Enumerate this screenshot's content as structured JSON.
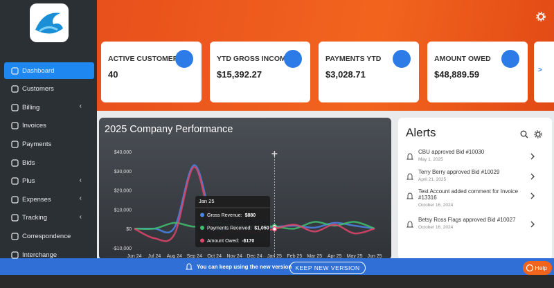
{
  "nav": [
    {
      "label": "Dashboard",
      "active": true,
      "submenu": false
    },
    {
      "label": "Customers",
      "active": false,
      "submenu": false
    },
    {
      "label": "Billing",
      "active": false,
      "submenu": true
    },
    {
      "label": "Invoices",
      "active": false,
      "submenu": false
    },
    {
      "label": "Payments",
      "active": false,
      "submenu": false
    },
    {
      "label": "Bids",
      "active": false,
      "submenu": false
    },
    {
      "label": "Plus",
      "active": false,
      "submenu": true
    },
    {
      "label": "Expenses",
      "active": false,
      "submenu": true
    },
    {
      "label": "Tracking",
      "active": false,
      "submenu": true
    },
    {
      "label": "Correspondence",
      "active": false,
      "submenu": false
    },
    {
      "label": "Interchange",
      "active": false,
      "submenu": false
    }
  ],
  "kpis": [
    {
      "label": "ACTIVE CUSTOMERS",
      "value": 40
    },
    {
      "label": "YTD GROSS INCOME",
      "value": "$15,392.27"
    },
    {
      "label": "PAYMENTS YTD",
      "value": "$3,028.71"
    },
    {
      "label": "AMOUNT OWED",
      "value": "$48,889.59"
    }
  ],
  "kpi_next": ">",
  "chart_data": {
    "type": "line",
    "title": "2025 Company Performance",
    "categories": [
      "Jun 24",
      "Jul 24",
      "Aug 24",
      "Sep 24",
      "Oct 24",
      "Nov 24",
      "Dec 24",
      "Jan 25",
      "Feb 25",
      "Mar 25",
      "Apr 25",
      "May 25",
      "Jun 25"
    ],
    "series": [
      {
        "name": "Gross Revenue",
        "color": "#4a86e8",
        "values": [
          0,
          0,
          500,
          33000,
          1000,
          1500,
          0,
          880,
          1500,
          500,
          3000,
          1500,
          0
        ]
      },
      {
        "name": "Payments Received",
        "color": "#3fbf6f",
        "values": [
          0,
          0,
          3000,
          1000,
          3000,
          1500,
          1500,
          1050,
          0,
          3500,
          1500,
          3500,
          0
        ]
      },
      {
        "name": "Amount Owed",
        "color": "#e0446a",
        "values": [
          0,
          -5000,
          -3000,
          32000,
          -3000,
          -1000,
          -2000,
          -170,
          2000,
          -1500,
          2000,
          -2500,
          0
        ]
      }
    ],
    "ylim": [
      -10000,
      40000
    ],
    "yticks": [
      {
        "value": -10000,
        "label": "-$10,000"
      },
      {
        "value": 0,
        "label": "$0"
      },
      {
        "value": 10000,
        "label": "$10,000"
      },
      {
        "value": 20000,
        "label": "$20,000"
      },
      {
        "value": 30000,
        "label": "$30,000"
      },
      {
        "value": 40000,
        "label": "$40,000"
      }
    ],
    "grid": false,
    "tooltip": {
      "index": 7,
      "items": [
        {
          "label": "Gross Revenue:",
          "value": "$880"
        },
        {
          "label": "Payments Received:",
          "value": "$1,050"
        },
        {
          "label": "Amount Owed:",
          "value": "-$170"
        }
      ]
    }
  },
  "alerts": {
    "title": "Alerts",
    "items": [
      {
        "text": "CBU approved Bid #10030",
        "date": "May 1, 2025"
      },
      {
        "text": "Terry Berry approved Bid #10029",
        "date": "April 21, 2025"
      },
      {
        "text": "Test Account added comment for Invoice #13316",
        "date": "October 16, 2024"
      },
      {
        "text": "Betsy Ross Flags approved Bid #10027",
        "date": "October 16, 2024"
      }
    ]
  },
  "banner": {
    "message": "You can keep using the new version",
    "button": "KEEP NEW VERSION"
  },
  "help": "Help"
}
